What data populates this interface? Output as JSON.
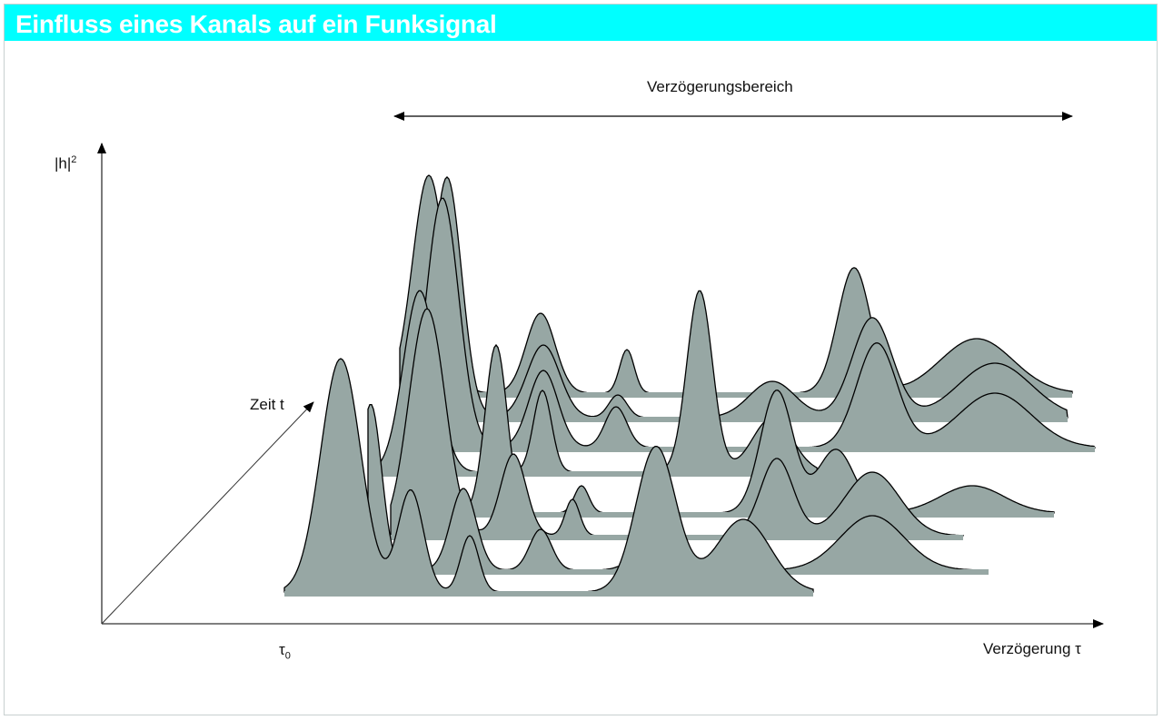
{
  "header": {
    "title": "Einfluss eines Kanals auf ein Funksignal"
  },
  "diagram": {
    "y_axis_label": "|h|",
    "y_axis_exponent": "2",
    "time_axis_label": "Zeit t",
    "x_axis_label": "Verzögerung τ",
    "origin_label": "τ",
    "origin_subscript": "0",
    "range_label": "Verzögerungsbereich",
    "fill_color": "#97a7a4",
    "title_bar_color": "#00ffff"
  }
}
